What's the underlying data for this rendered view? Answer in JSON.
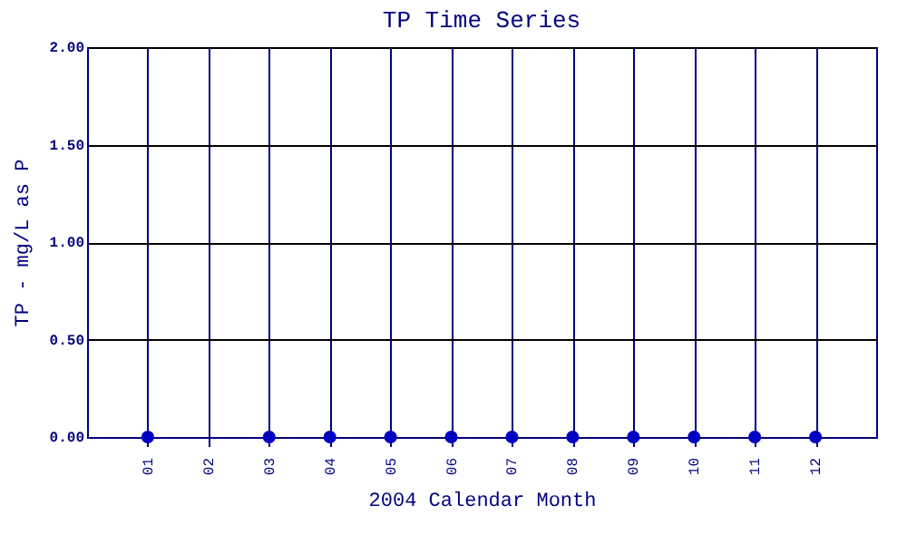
{
  "chart_data": {
    "type": "scatter",
    "title": "TP Time Series",
    "xlabel": "2004 Calendar Month",
    "ylabel": "TP - mg/L as P",
    "categories": [
      "01",
      "02",
      "03",
      "04",
      "05",
      "06",
      "07",
      "08",
      "09",
      "10",
      "11",
      "12"
    ],
    "series": [
      {
        "color": "#0000c0",
        "values": [
          0,
          null,
          0,
          0,
          0,
          0,
          0,
          0,
          0,
          0,
          0,
          0
        ]
      }
    ],
    "ylim": [
      0,
      2
    ],
    "yticks": [
      {
        "value": 0,
        "label": "0.00"
      },
      {
        "value": 0.5,
        "label": "0.50"
      },
      {
        "value": 1,
        "label": "1.00"
      },
      {
        "value": 1.5,
        "label": "1.50"
      },
      {
        "value": 2,
        "label": "2.00"
      }
    ],
    "grid": true,
    "marker": "circle"
  }
}
